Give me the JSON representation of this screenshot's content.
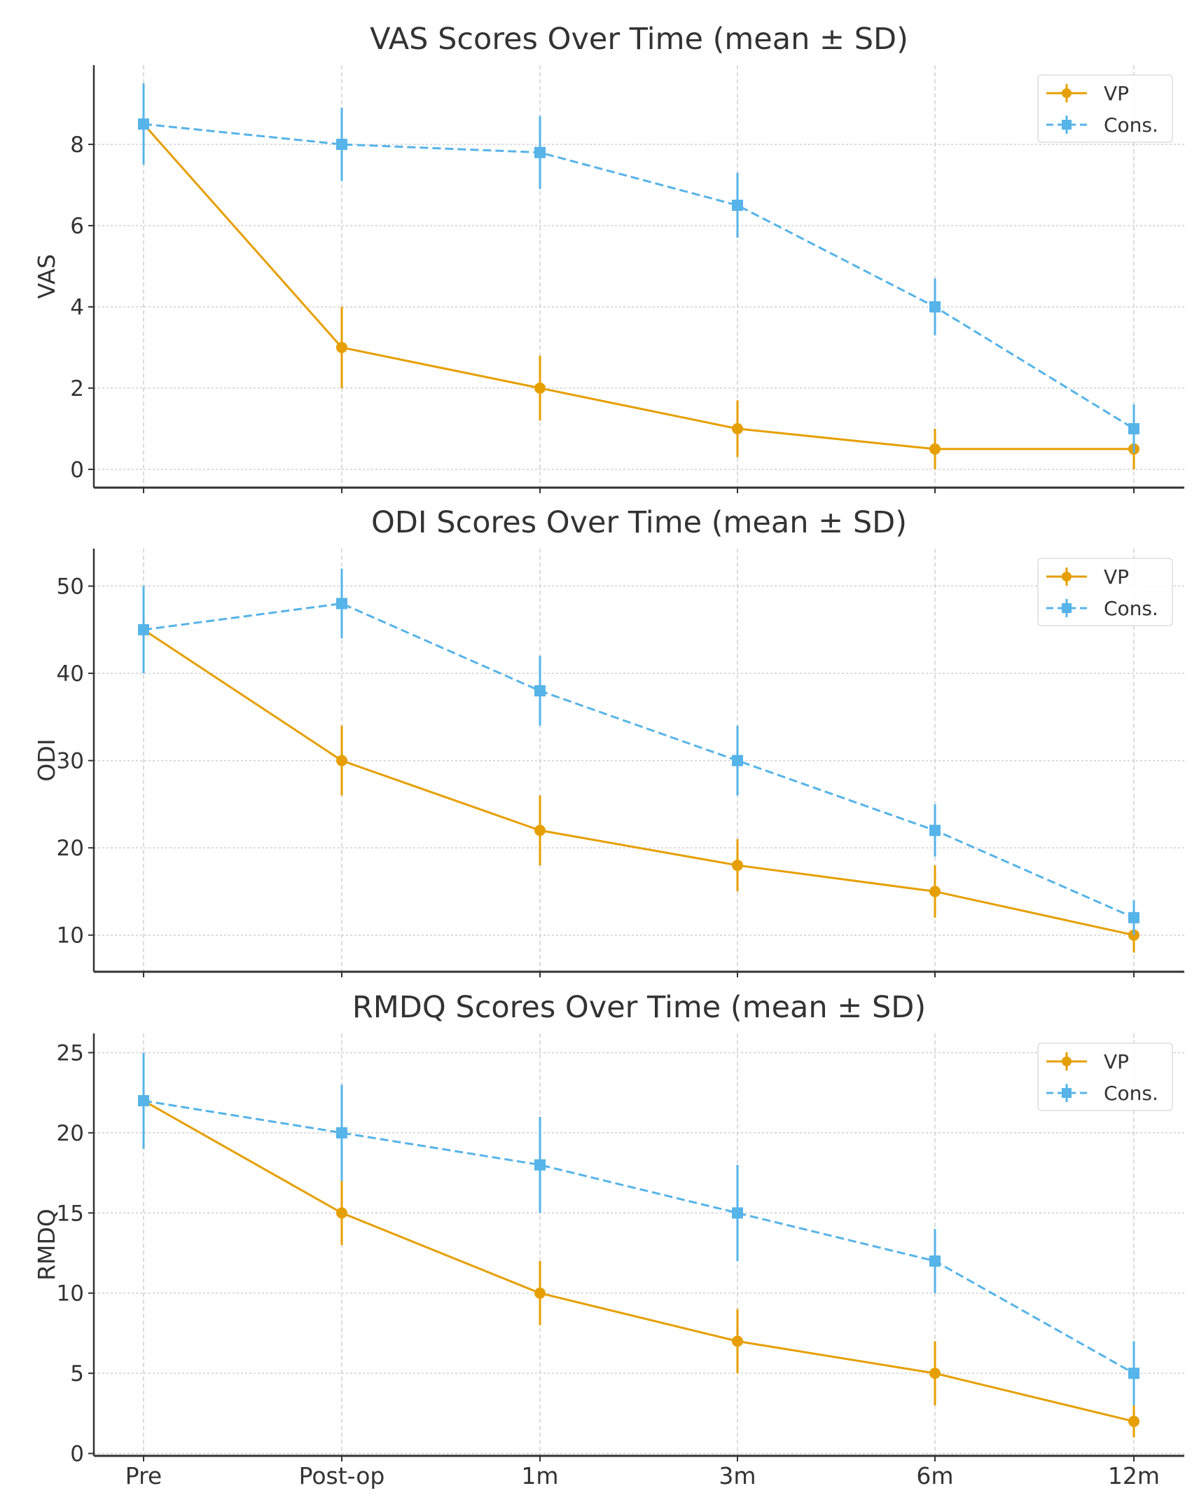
{
  "chart_data": [
    {
      "type": "line",
      "title": "VAS Scores Over Time (mean ± SD)",
      "xlabel": "",
      "ylabel": "VAS",
      "categories": [
        "Pre",
        "Post-op",
        "1m",
        "3m",
        "6m",
        "12m"
      ],
      "ylim": [
        -0.45,
        9.95
      ],
      "yticks": [
        0,
        2,
        4,
        6,
        8
      ],
      "grid": true,
      "legend": "top-right",
      "series": [
        {
          "name": "VP",
          "values": [
            8.5,
            3,
            2,
            1,
            0.5,
            0.5
          ],
          "sd": [
            1,
            1,
            0.8,
            0.7,
            0.5,
            0.5
          ],
          "color": "#E69F00",
          "style": "solid",
          "marker": "circle"
        },
        {
          "name": "Cons.",
          "values": [
            8.5,
            8,
            7.8,
            6.5,
            4,
            1
          ],
          "sd": [
            1,
            0.9,
            0.9,
            0.8,
            0.7,
            0.6
          ],
          "color": "#56B4E9",
          "style": "dashed",
          "marker": "square"
        }
      ]
    },
    {
      "type": "line",
      "title": "ODI Scores Over Time (mean ± SD)",
      "xlabel": "",
      "ylabel": "ODI",
      "categories": [
        "Pre",
        "Post-op",
        "1m",
        "3m",
        "6m",
        "12m"
      ],
      "ylim": [
        5.8,
        54.3
      ],
      "yticks": [
        10,
        20,
        30,
        40,
        50
      ],
      "grid": true,
      "legend": "top-right",
      "series": [
        {
          "name": "VP",
          "values": [
            45,
            30,
            22,
            18,
            15,
            10
          ],
          "sd": [
            5,
            4,
            4,
            3,
            3,
            2
          ],
          "color": "#E69F00",
          "style": "solid",
          "marker": "circle"
        },
        {
          "name": "Cons.",
          "values": [
            45,
            48,
            38,
            30,
            22,
            12
          ],
          "sd": [
            5,
            4,
            4,
            4,
            3,
            2
          ],
          "color": "#56B4E9",
          "style": "dashed",
          "marker": "square"
        }
      ]
    },
    {
      "type": "line",
      "title": "RMDQ Scores Over Time (mean ± SD)",
      "xlabel": "",
      "ylabel": "RMDQ",
      "categories": [
        "Pre",
        "Post-op",
        "1m",
        "3m",
        "6m",
        "12m"
      ],
      "ylim": [
        -0.15,
        26.2
      ],
      "yticks": [
        0,
        5,
        10,
        15,
        20,
        25
      ],
      "grid": true,
      "legend": "top-right",
      "show_xticklabels": true,
      "series": [
        {
          "name": "VP",
          "values": [
            22,
            15,
            10,
            7,
            5,
            2
          ],
          "sd": [
            3,
            2,
            2,
            2,
            2,
            1
          ],
          "color": "#E69F00",
          "style": "solid",
          "marker": "circle"
        },
        {
          "name": "Cons.",
          "values": [
            22,
            20,
            18,
            15,
            12,
            5
          ],
          "sd": [
            3,
            3,
            3,
            3,
            2,
            2
          ],
          "color": "#56B4E9",
          "style": "dashed",
          "marker": "square"
        }
      ]
    }
  ]
}
